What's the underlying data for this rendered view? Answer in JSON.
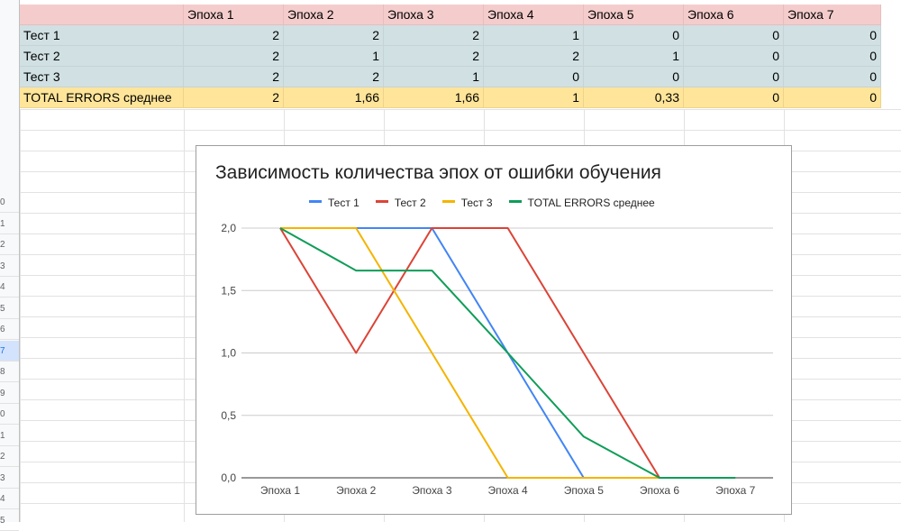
{
  "sheet": {
    "row_numbers": [
      "0",
      "1",
      "2",
      "3",
      "4",
      "5",
      "6",
      "7",
      "8",
      "9",
      "0",
      "1",
      "2",
      "3",
      "4",
      "5"
    ],
    "selected_row": "7",
    "columns": [
      "",
      "Эпоха 1",
      "Эпоха 2",
      "Эпоха 3",
      "Эпоха 4",
      "Эпоха 5",
      "Эпоха 6",
      "Эпоха 7"
    ],
    "rows": [
      {
        "label": "Тест 1",
        "values": [
          "2",
          "2",
          "2",
          "1",
          "0",
          "0",
          "0"
        ],
        "type": "test"
      },
      {
        "label": "Тест 2",
        "values": [
          "2",
          "1",
          "2",
          "2",
          "1",
          "0",
          "0"
        ],
        "type": "test"
      },
      {
        "label": "Тест 3",
        "values": [
          "2",
          "2",
          "1",
          "0",
          "0",
          "0",
          "0"
        ],
        "type": "test"
      },
      {
        "label": "TOTAL ERRORS среднее",
        "values": [
          "2",
          "1,66",
          "1,66",
          "1",
          "0,33",
          "0",
          "0"
        ],
        "type": "total"
      }
    ]
  },
  "chart_data": {
    "type": "line",
    "title": "Зависимость количества эпох от ошибки  обучения",
    "categories": [
      "Эпоха 1",
      "Эпоха 2",
      "Эпоха 3",
      "Эпоха 4",
      "Эпоха 5",
      "Эпоха 6",
      "Эпоха 7"
    ],
    "series": [
      {
        "name": "Тест 1",
        "color": "#4285f4",
        "values": [
          2,
          2,
          2,
          1,
          0,
          0,
          0
        ]
      },
      {
        "name": "Тест 2",
        "color": "#db4437",
        "values": [
          2,
          1,
          2,
          2,
          1,
          0,
          0
        ]
      },
      {
        "name": "Тест 3",
        "color": "#f4b400",
        "values": [
          2,
          2,
          1,
          0,
          0,
          0,
          0
        ]
      },
      {
        "name": "TOTAL ERRORS среднее",
        "color": "#0f9d58",
        "values": [
          2,
          1.66,
          1.66,
          1,
          0.33,
          0,
          0
        ]
      }
    ],
    "ylim": [
      0,
      2
    ],
    "yticks": [
      "0,0",
      "0,5",
      "1,0",
      "1,5",
      "2,0"
    ],
    "ytick_values": [
      0,
      0.5,
      1,
      1.5,
      2
    ],
    "grid": true,
    "legend": "top"
  }
}
